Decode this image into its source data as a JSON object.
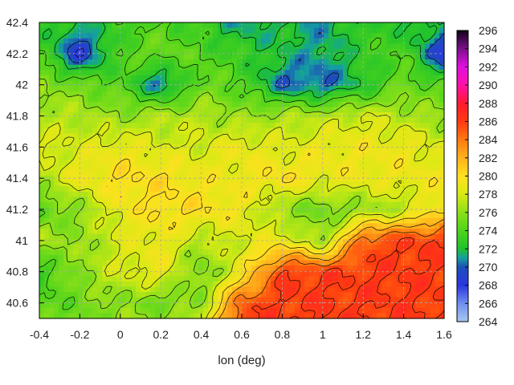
{
  "chart_data": {
    "type": "heatmap",
    "title": "",
    "xlabel": "lon (deg)",
    "ylabel": "",
    "xlim": [
      -0.4,
      1.6
    ],
    "ylim": [
      40.5,
      42.4
    ],
    "x_ticks": [
      "-0.4",
      "-0.2",
      "0",
      "0.2",
      "0.4",
      "0.6",
      "0.8",
      "1",
      "1.2",
      "1.4",
      "1.6"
    ],
    "y_ticks": [
      "40.6",
      "40.8",
      "41",
      "41.2",
      "41.4",
      "41.6",
      "41.8",
      "42",
      "42.2",
      "42.4"
    ],
    "grid": true,
    "contours": true,
    "colorbar": {
      "min": 264,
      "max": 296,
      "ticks": [
        "264",
        "266",
        "268",
        "270",
        "272",
        "274",
        "276",
        "278",
        "280",
        "282",
        "284",
        "286",
        "288",
        "290",
        "292",
        "294",
        "296"
      ],
      "stops": [
        {
          "value": 264,
          "color": "#a9c8f0"
        },
        {
          "value": 266,
          "color": "#6f8ff0"
        },
        {
          "value": 268,
          "color": "#2b36e0"
        },
        {
          "value": 270,
          "color": "#1d4fb8"
        },
        {
          "value": 271,
          "color": "#15a0a0"
        },
        {
          "value": 272,
          "color": "#1fc22e"
        },
        {
          "value": 274,
          "color": "#4fd41a"
        },
        {
          "value": 276,
          "color": "#8ce01a"
        },
        {
          "value": 278,
          "color": "#d9ea14"
        },
        {
          "value": 280,
          "color": "#ffe020"
        },
        {
          "value": 282,
          "color": "#ffb21c"
        },
        {
          "value": 284,
          "color": "#ff7a10"
        },
        {
          "value": 286,
          "color": "#ff3a10"
        },
        {
          "value": 288,
          "color": "#ff1a30"
        },
        {
          "value": 290,
          "color": "#ff10a8"
        },
        {
          "value": 292,
          "color": "#e010e0"
        },
        {
          "value": 294,
          "color": "#7a108a"
        },
        {
          "value": 296,
          "color": "#100414"
        }
      ]
    },
    "grid_values": {
      "x": [
        -0.4,
        -0.2,
        0.0,
        0.2,
        0.4,
        0.6,
        0.8,
        1.0,
        1.2,
        1.4,
        1.6
      ],
      "y": [
        42.4,
        42.2,
        42.0,
        41.8,
        41.6,
        41.4,
        41.2,
        41.0,
        40.8,
        40.6,
        40.5
      ],
      "z": [
        [
          273,
          272,
          273,
          274,
          273,
          271,
          272,
          271,
          273,
          272,
          272
        ],
        [
          274,
          268,
          274,
          275,
          274,
          273,
          272,
          271,
          273,
          274,
          268
        ],
        [
          276,
          275,
          274,
          270,
          275,
          274,
          270,
          270,
          272,
          275,
          274
        ],
        [
          277,
          277,
          276,
          277,
          277,
          276,
          277,
          277,
          278,
          277,
          276
        ],
        [
          278,
          278,
          279,
          278,
          278,
          279,
          278,
          279,
          279,
          279,
          278
        ],
        [
          277,
          279,
          280,
          280,
          279,
          279,
          280,
          279,
          279,
          279,
          279
        ],
        [
          274,
          276,
          279,
          280,
          280,
          279,
          276,
          275,
          276,
          277,
          280
        ],
        [
          277,
          276,
          278,
          279,
          277,
          278,
          279,
          276,
          285,
          286,
          286
        ],
        [
          273,
          276,
          278,
          279,
          275,
          279,
          286,
          286,
          286,
          286,
          286
        ],
        [
          274,
          275,
          276,
          275,
          276,
          285,
          286,
          286,
          286,
          286,
          286
        ],
        [
          275,
          275,
          276,
          276,
          277,
          286,
          286,
          286,
          286,
          286,
          286
        ]
      ]
    }
  }
}
